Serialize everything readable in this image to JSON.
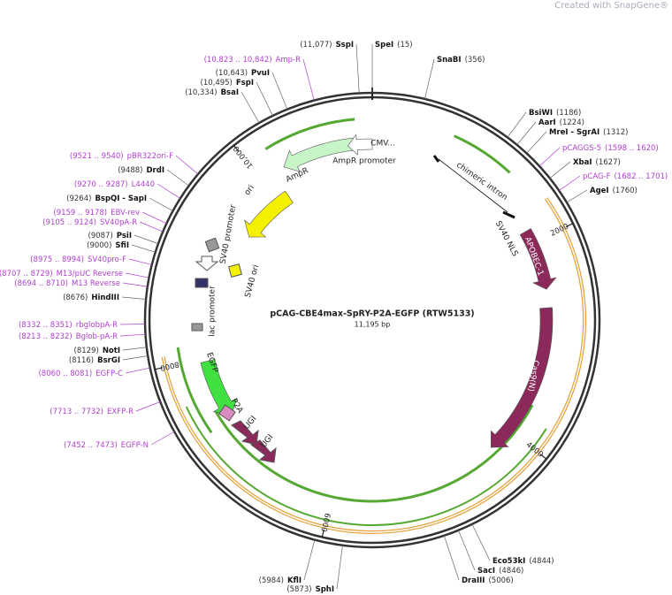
{
  "watermark": "Created with SnapGene®",
  "plasmid": {
    "name": "pCAG-CBE4max-SpRY-P2A-EGFP (RTW5133)",
    "size": "11,195 bp"
  },
  "ticks": [
    "2000",
    "4000",
    "6000",
    "8000",
    "10,000"
  ],
  "enzymes": [
    {
      "position": "(11,077)",
      "name": "SspI"
    },
    {
      "position": "(15)",
      "name": "SpeI"
    },
    {
      "position": "(356)",
      "name": "SnaBI"
    },
    {
      "position": "(10,643)",
      "name": "PvuI"
    },
    {
      "position": "(10,495)",
      "name": "FspI"
    },
    {
      "position": "(10,334)",
      "name": "BsaI"
    },
    {
      "position": "(1186)",
      "name": "BsiWI"
    },
    {
      "position": "(1224)",
      "name": "AarI"
    },
    {
      "position": "(1312)",
      "name": "MreI - SgrAI"
    },
    {
      "position": "(1627)",
      "name": "XbaI"
    },
    {
      "position": "(1760)",
      "name": "AgeI"
    },
    {
      "position": "(9488)",
      "name": "DrdI"
    },
    {
      "position": "(9264)",
      "name": "BspQI - SapI"
    },
    {
      "position": "(9087)",
      "name": "PsiI"
    },
    {
      "position": "(9000)",
      "name": "SfiI"
    },
    {
      "position": "(8676)",
      "name": "HindIII"
    },
    {
      "position": "(8129)",
      "name": "NotI"
    },
    {
      "position": "(8116)",
      "name": "BsrGI"
    },
    {
      "position": "(4844)",
      "name": "Eco53kI"
    },
    {
      "position": "(4846)",
      "name": "SacI"
    },
    {
      "position": "(5006)",
      "name": "DraIII"
    },
    {
      "position": "(5984)",
      "name": "KflI"
    },
    {
      "position": "(5873)",
      "name": "SphI"
    }
  ],
  "primers": [
    {
      "range": "(10,823 .. 10,842)",
      "name": "Amp-R"
    },
    {
      "range": "(1598 .. 1620)",
      "name": "pCAGGS-5"
    },
    {
      "range": "(1682 .. 1701)",
      "name": "pCAG-F"
    },
    {
      "range": "(9521 .. 9540)",
      "name": "pBR322ori-F"
    },
    {
      "range": "(9270 .. 9287)",
      "name": "L4440"
    },
    {
      "range": "(9159 .. 9178)",
      "name": "EBV-rev"
    },
    {
      "range": "(9105 .. 9124)",
      "name": "SV40pA-R"
    },
    {
      "range": "(8975 .. 8994)",
      "name": "SV40pro-F"
    },
    {
      "range": "(8707 .. 8729)",
      "name": "M13/pUC Reverse"
    },
    {
      "range": "(8694 .. 8710)",
      "name": "M13 Reverse"
    },
    {
      "range": "(8332 .. 8351)",
      "name": "rbglobpA-R"
    },
    {
      "range": "(8213 .. 8232)",
      "name": "Bglob-pA-R"
    },
    {
      "range": "(8060 .. 8081)",
      "name": "EGFP-C"
    },
    {
      "range": "(7713 .. 7732)",
      "name": "EXFP-R"
    },
    {
      "range": "(7452 .. 7473)",
      "name": "EGFP-N"
    }
  ],
  "features": [
    "CMV...",
    "AmpR promoter",
    "AmpR",
    "ori",
    "SV40 promoter",
    "SV40 ori",
    "lac promoter",
    "EGFP",
    "P2A",
    "UGI",
    "UGI",
    "chimeric intron",
    "SV40 NLS",
    "APOBEC-1",
    "Cas9(N)"
  ]
}
